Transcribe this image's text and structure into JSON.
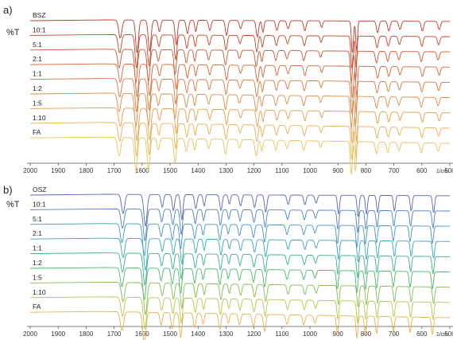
{
  "chart_data": [
    {
      "panel": "a)",
      "type": "line",
      "ylabel": "%T",
      "xlabel": "1/cm",
      "xlim": [
        2000,
        500
      ],
      "x_reversed": true,
      "xticks": [
        2000,
        1900,
        1800,
        1700,
        1600,
        1500,
        1400,
        1300,
        1200,
        1100,
        1000,
        900,
        800,
        700,
        600,
        500
      ],
      "series": [
        {
          "name": "BSZ",
          "color": "#c0392b"
        },
        {
          "name": "10:1",
          "color": "#c8442a"
        },
        {
          "name": "5:1",
          "color": "#cf5530"
        },
        {
          "name": "2:1",
          "color": "#d56636"
        },
        {
          "name": "1:1",
          "color": "#db783d"
        },
        {
          "name": "1:2",
          "color": "#e08a44"
        },
        {
          "name": "1:5",
          "color": "#e59d4b"
        },
        {
          "name": "1:10",
          "color": "#e8b052"
        },
        {
          "name": "FA",
          "color": "#ebc35a"
        }
      ]
    },
    {
      "panel": "b)",
      "type": "line",
      "ylabel": "%T",
      "xlabel": "1/cm",
      "xlim": [
        2000,
        500
      ],
      "x_reversed": true,
      "xticks": [
        2000,
        1900,
        1800,
        1700,
        1600,
        1500,
        1400,
        1300,
        1200,
        1100,
        1000,
        900,
        800,
        700,
        600,
        500
      ],
      "series": [
        {
          "name": "OSZ",
          "color": "#5b64b6"
        },
        {
          "name": "10:1",
          "color": "#4f7fc4"
        },
        {
          "name": "5:1",
          "color": "#4395c8"
        },
        {
          "name": "2:1",
          "color": "#3aa6b4"
        },
        {
          "name": "1:1",
          "color": "#39b08f"
        },
        {
          "name": "1:2",
          "color": "#4bb66a"
        },
        {
          "name": "1:5",
          "color": "#7fbf4f"
        },
        {
          "name": "1:10",
          "color": "#b4c64a"
        },
        {
          "name": "FA",
          "color": "#e3b24d"
        }
      ]
    }
  ]
}
